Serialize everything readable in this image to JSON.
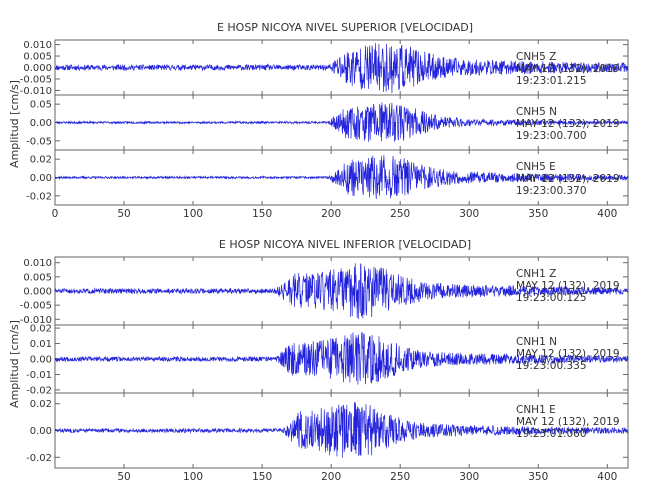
{
  "chart_data": [
    {
      "type": "line",
      "title": "E HOSP NICOYA NIVEL SUPERIOR [VELOCIDAD]",
      "ylabel": "Amplitud [cm/s]",
      "xlim": [
        0,
        415
      ],
      "xticks": [
        "0",
        "50",
        "100",
        "150",
        "200",
        "250",
        "300",
        "350",
        "400"
      ],
      "show_x_tick_labels": true,
      "panels": [
        {
          "channel": "CNH5",
          "component": "Z",
          "date": "MAY 12 (132), 2019",
          "time": "19:23:01.215",
          "ylim": [
            -0.012,
            0.012
          ],
          "yticks": [
            "0.010",
            "0.005",
            "0.000",
            "-0.005",
            "-0.010"
          ],
          "series": [
            {
              "onset": 198,
              "peak_time": 242,
              "peak_amp": 0.011,
              "noise": 0.0012,
              "decay": 1.8,
              "seed": 11
            }
          ]
        },
        {
          "channel": "CNH5",
          "component": "N",
          "date": "MAY 12 (132), 2019",
          "time": "19:23:00.700",
          "ylim": [
            -0.075,
            0.075
          ],
          "yticks": [
            "0.05",
            "0.00",
            "-0.05"
          ],
          "series": [
            {
              "onset": 198,
              "peak_time": 242,
              "peak_amp": 0.065,
              "noise": 0.003,
              "decay": 1.1,
              "seed": 23
            }
          ]
        },
        {
          "channel": "CNH5",
          "component": "E",
          "date": "MAY 12 (132), 2019",
          "time": "19:23:00.370",
          "ylim": [
            -0.03,
            0.03
          ],
          "yticks": [
            "0.02",
            "0.00",
            "-0.02"
          ],
          "series": [
            {
              "onset": 198,
              "peak_time": 240,
              "peak_amp": 0.026,
              "noise": 0.0012,
              "decay": 1.7,
              "seed": 37
            }
          ]
        }
      ]
    },
    {
      "type": "line",
      "title": "E HOSP NICOYA NIVEL INFERIOR [VELOCIDAD]",
      "ylabel": "Amplitud [cm/s]",
      "xlim": [
        0,
        415
      ],
      "xticks": [
        "50",
        "100",
        "150",
        "200",
        "250",
        "300",
        "350",
        "400"
      ],
      "show_x_tick_labels": true,
      "panels": [
        {
          "channel": "CNH1",
          "component": "Z",
          "date": "MAY 12 (132), 2019",
          "time": "19:23:00.125",
          "ylim": [
            -0.012,
            0.012
          ],
          "yticks": [
            "0.010",
            "0.005",
            "0.000",
            "-0.005",
            "-0.010"
          ],
          "series": [
            {
              "onset": 160,
              "peak_time": 225,
              "peak_amp": 0.011,
              "noise": 0.0009,
              "decay": 1.6,
              "seed": 51
            }
          ]
        },
        {
          "channel": "CNH1",
          "component": "N",
          "date": "MAY 12 (132), 2019",
          "time": "19:23:00.335",
          "ylim": [
            -0.022,
            0.022
          ],
          "yticks": [
            "0.02",
            "0.01",
            "0.00",
            "-0.01",
            "-0.02"
          ],
          "series": [
            {
              "onset": 160,
              "peak_time": 222,
              "peak_amp": 0.019,
              "noise": 0.0015,
              "decay": 1.6,
              "seed": 67
            }
          ]
        },
        {
          "channel": "CNH1",
          "component": "E",
          "date": "MAY 12 (132), 2019",
          "time": "19:23:01.060",
          "ylim": [
            -0.028,
            0.028
          ],
          "yticks": [
            "0.02",
            "0.00",
            "-0.02"
          ],
          "series": [
            {
              "onset": 165,
              "peak_time": 218,
              "peak_amp": 0.024,
              "noise": 0.0015,
              "decay": 1.4,
              "seed": 83
            }
          ]
        }
      ]
    }
  ]
}
